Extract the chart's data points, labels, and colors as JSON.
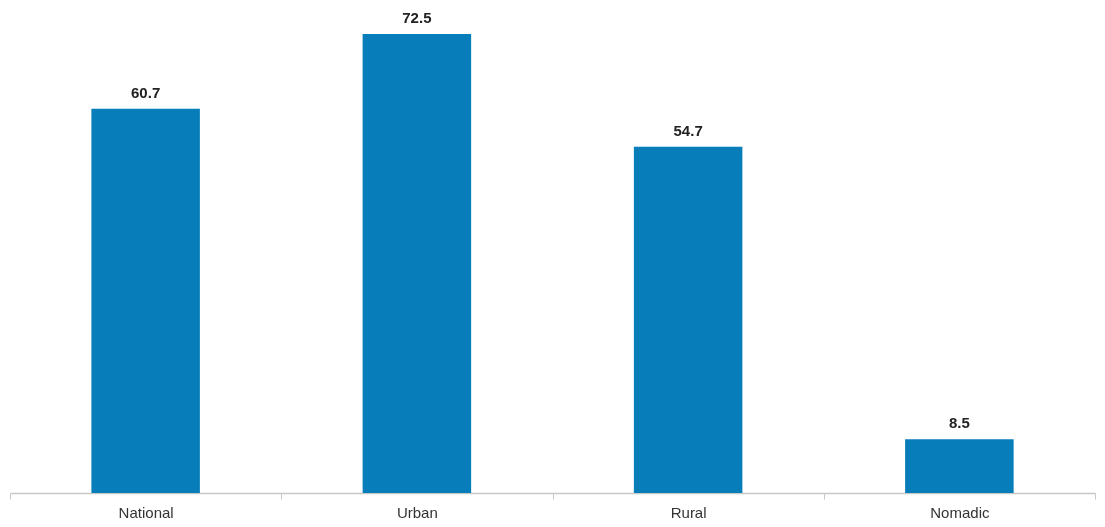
{
  "chart_data": {
    "type": "bar",
    "categories": [
      "National",
      "Urban",
      "Rural",
      "Nomadic"
    ],
    "values": [
      60.7,
      72.5,
      54.7,
      8.5
    ],
    "color": "#077dba",
    "data_labels": true,
    "grid": false,
    "tick_labels": "x"
  }
}
